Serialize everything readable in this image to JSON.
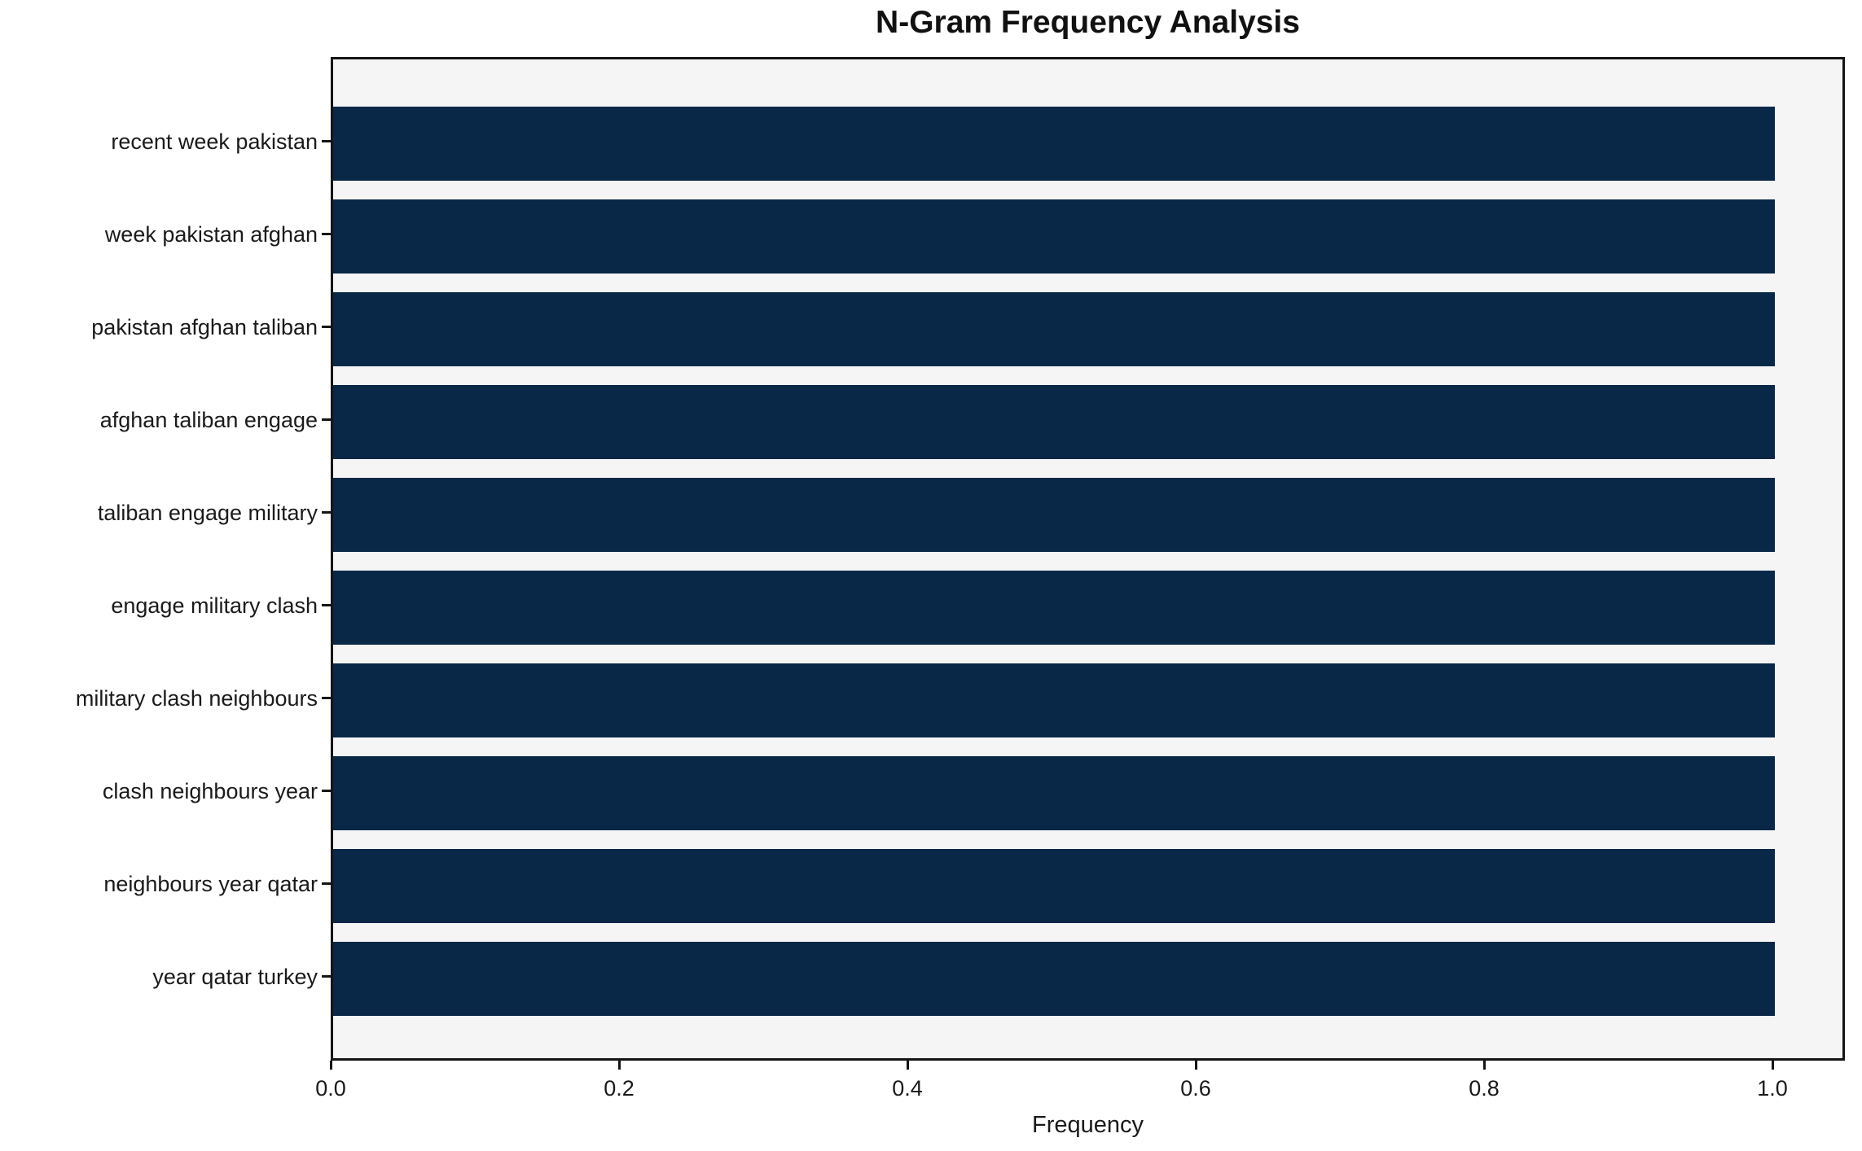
{
  "chart_data": {
    "type": "bar",
    "orientation": "horizontal",
    "title": "N-Gram Frequency Analysis",
    "xlabel": "Frequency",
    "ylabel": "",
    "categories": [
      "recent week pakistan",
      "week pakistan afghan",
      "pakistan afghan taliban",
      "afghan taliban engage",
      "taliban engage military",
      "engage military clash",
      "military clash neighbours",
      "clash neighbours year",
      "neighbours year qatar",
      "year qatar turkey"
    ],
    "values": [
      1.0,
      1.0,
      1.0,
      1.0,
      1.0,
      1.0,
      1.0,
      1.0,
      1.0,
      1.0
    ],
    "xlim": [
      0,
      1.05
    ],
    "x_ticks": [
      {
        "value": 0.0,
        "label": "0.0"
      },
      {
        "value": 0.2,
        "label": "0.2"
      },
      {
        "value": 0.4,
        "label": "0.4"
      },
      {
        "value": 0.6,
        "label": "0.6"
      },
      {
        "value": 0.8,
        "label": "0.8"
      },
      {
        "value": 1.0,
        "label": "1.0"
      }
    ],
    "grid": false,
    "legend": false,
    "bar_color": "#092747",
    "plot_bg": "#f5f5f6",
    "figure_bg": "#ffffff",
    "spine_color": "#151515"
  }
}
